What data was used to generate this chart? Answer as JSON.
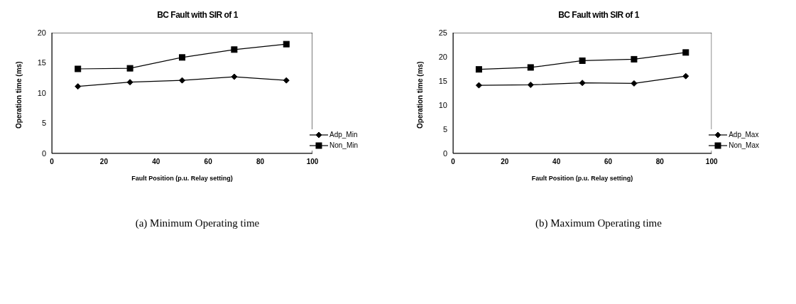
{
  "chart_data": [
    {
      "type": "line",
      "title": "BC Fault with SIR of 1",
      "xlabel": "Fault Position (p.u. Relay setting)",
      "ylabel": "Operation time (ms)",
      "x": [
        10,
        30,
        50,
        70,
        90
      ],
      "xlim": [
        0,
        100
      ],
      "xticks": [
        0,
        20,
        40,
        60,
        80,
        100
      ],
      "ylim": [
        0,
        20
      ],
      "yticks": [
        0,
        5,
        10,
        15,
        20
      ],
      "legend": "bottom right",
      "annotations": [
        "(a) Minimum Operating time"
      ],
      "series": [
        {
          "name": "Adp_Min",
          "color": "#000000",
          "marker": "diamond",
          "values": [
            11.1,
            11.8,
            12.1,
            12.7,
            12.1
          ]
        },
        {
          "name": "Non_Min",
          "color": "#000000",
          "marker": "square",
          "values": [
            14.0,
            14.1,
            15.9,
            17.2,
            18.1
          ]
        }
      ]
    },
    {
      "type": "line",
      "title": "BC Fault with SIR of 1",
      "xlabel": "Fault Position (p.u. Relay setting)",
      "ylabel": "Operation time (ms)",
      "x": [
        10,
        30,
        50,
        70,
        90
      ],
      "xlim": [
        0,
        100
      ],
      "xticks": [
        0,
        20,
        40,
        60,
        80,
        100
      ],
      "ylim": [
        0,
        25
      ],
      "yticks": [
        0,
        5,
        10,
        15,
        20,
        25
      ],
      "legend": "bottom right",
      "annotations": [
        "(b) Maximum Operating time"
      ],
      "series": [
        {
          "name": "Adp_Max",
          "color": "#000000",
          "marker": "diamond",
          "values": [
            14.1,
            14.2,
            14.6,
            14.5,
            16.0
          ]
        },
        {
          "name": "Non_Max",
          "color": "#000000",
          "marker": "square",
          "values": [
            17.4,
            17.8,
            19.2,
            19.5,
            20.9
          ]
        }
      ]
    }
  ]
}
